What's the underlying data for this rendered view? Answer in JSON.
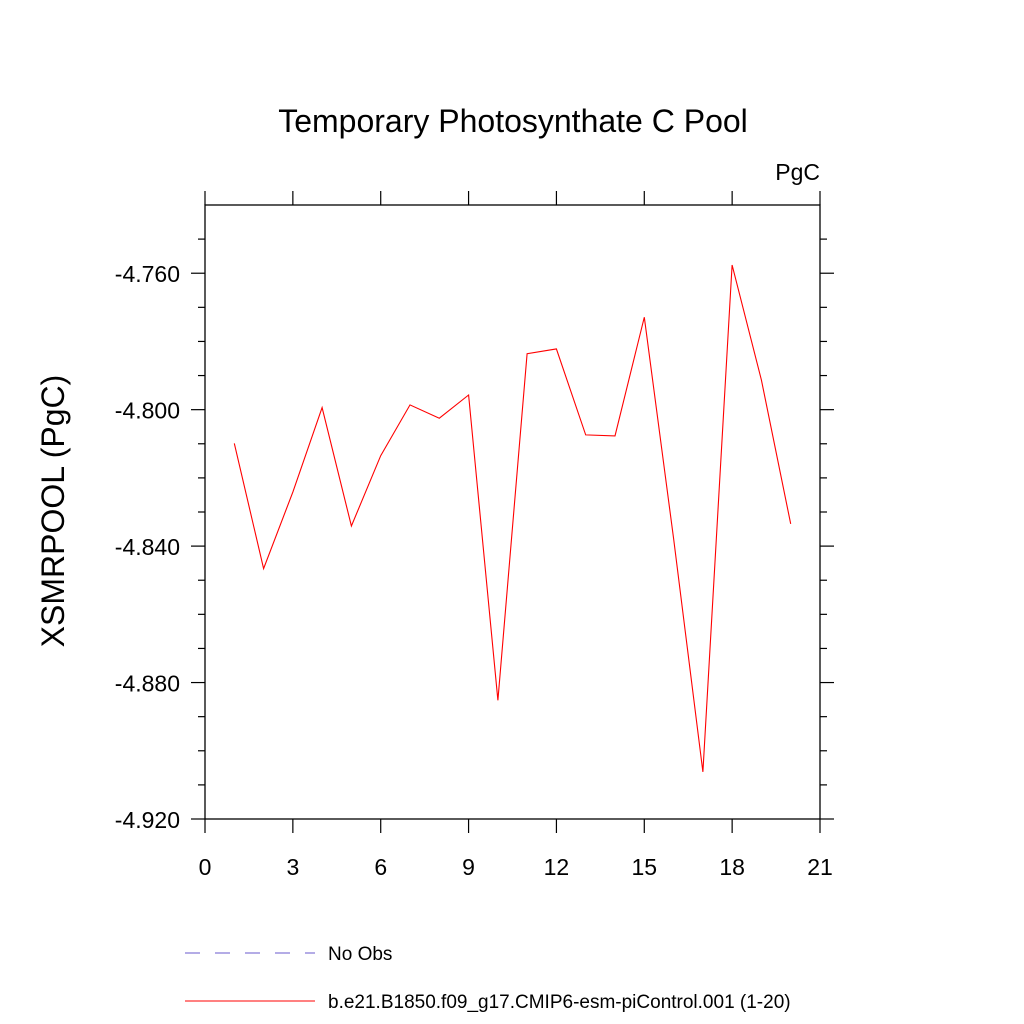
{
  "chart_data": {
    "type": "line",
    "title": "Temporary Photosynthate C Pool",
    "units_label": "PgC",
    "ylabel": "XSMRPOOL  (PgC)",
    "xlabel": "",
    "xlim": [
      0,
      21
    ],
    "ylim": [
      -4.92,
      -4.74
    ],
    "x_ticks": [
      0,
      3,
      6,
      9,
      12,
      15,
      18,
      21
    ],
    "x_tick_labels": [
      "0",
      "3",
      "6",
      "9",
      "12",
      "15",
      "18",
      "21"
    ],
    "y_ticks": [
      -4.92,
      -4.88,
      -4.84,
      -4.8,
      -4.76
    ],
    "y_tick_labels": [
      "-4.920",
      "-4.880",
      "-4.840",
      "-4.800",
      "-4.760"
    ],
    "grid": false,
    "legend_position": "bottom",
    "series": [
      {
        "name": "b.e21.B1850.f09_g17.CMIP6-esm-piControl.001 (1-20)",
        "color": "#ff0000",
        "style": "solid",
        "x": [
          1,
          2,
          3,
          4,
          5,
          6,
          7,
          8,
          9,
          10,
          11,
          12,
          13,
          14,
          15,
          16,
          17,
          18,
          19,
          20
        ],
        "y": [
          -4.8099,
          -4.8466,
          -4.8241,
          -4.7994,
          -4.8341,
          -4.8135,
          -4.7986,
          -4.8025,
          -4.7957,
          -4.8852,
          -4.7836,
          -4.7822,
          -4.8074,
          -4.8077,
          -4.7729,
          -4.8378,
          -4.9062,
          -4.7576,
          -4.7913,
          -4.8335
        ]
      }
    ],
    "legend": [
      {
        "label": "No Obs",
        "color": "#6a5acd",
        "style": "dashed"
      },
      {
        "label": "b.e21.B1850.f09_g17.CMIP6-esm-piControl.001 (1-20)",
        "color": "#ff0000",
        "style": "solid"
      }
    ]
  }
}
